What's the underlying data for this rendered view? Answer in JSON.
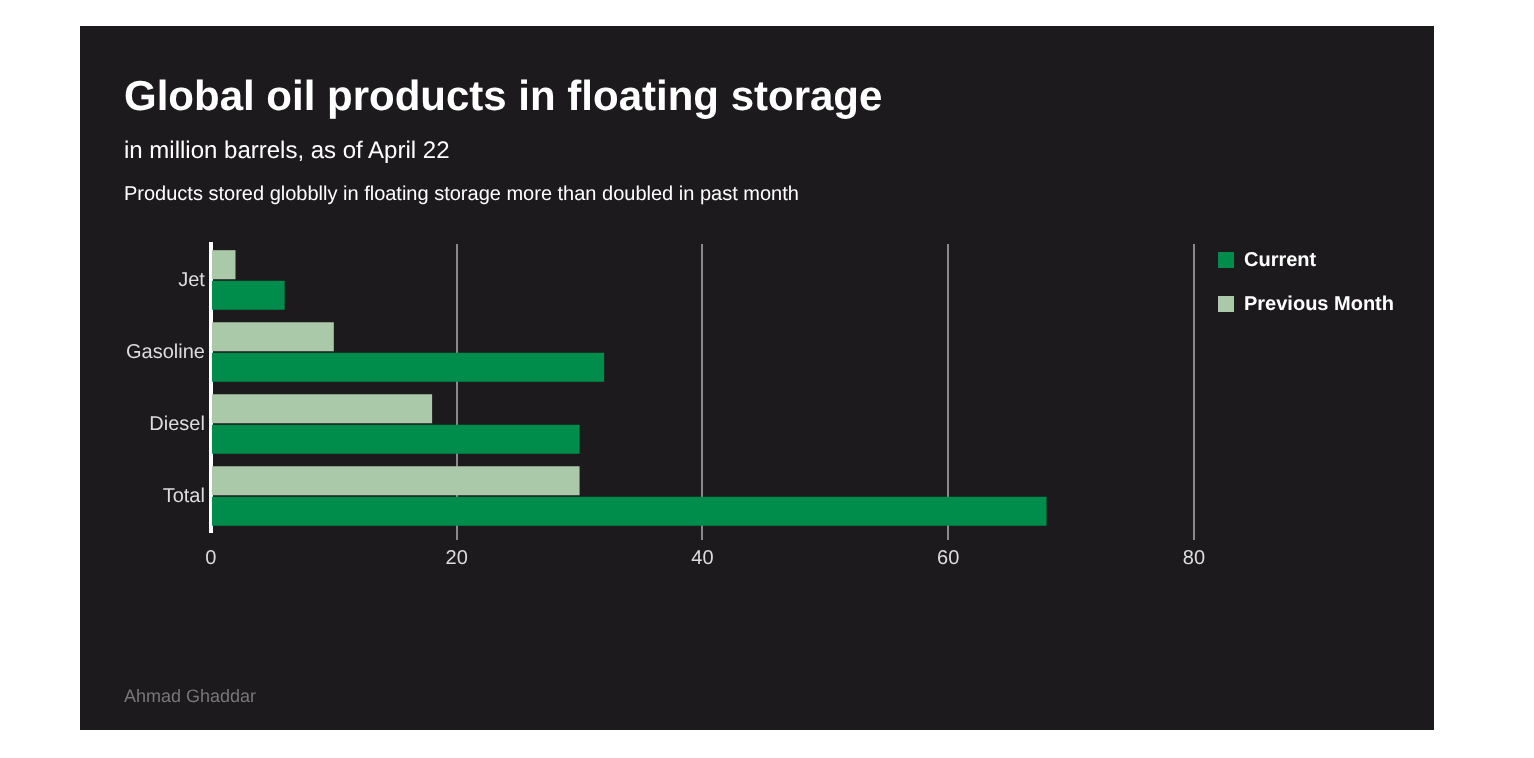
{
  "chart_data": {
    "type": "bar",
    "orientation": "horizontal",
    "title": "Global oil products in floating storage",
    "subtitle": "in million barrels, as of April 22",
    "annotations": [
      "Products stored globblly in floating storage more than doubled in past month",
      "Ahmad Ghaddar"
    ],
    "categories": [
      "Jet",
      "Gasoline",
      "Diesel",
      "Total"
    ],
    "series": [
      {
        "name": "Current",
        "color": "#008c4a",
        "values": [
          6,
          32,
          30,
          68
        ]
      },
      {
        "name": "Previous Month",
        "color": "#a9c9a9",
        "values": [
          2,
          10,
          18,
          30
        ]
      }
    ],
    "xlim": [
      0,
      80
    ],
    "xticks": [
      0,
      20,
      40,
      60,
      80
    ],
    "grid": "x",
    "legend": "top right"
  }
}
